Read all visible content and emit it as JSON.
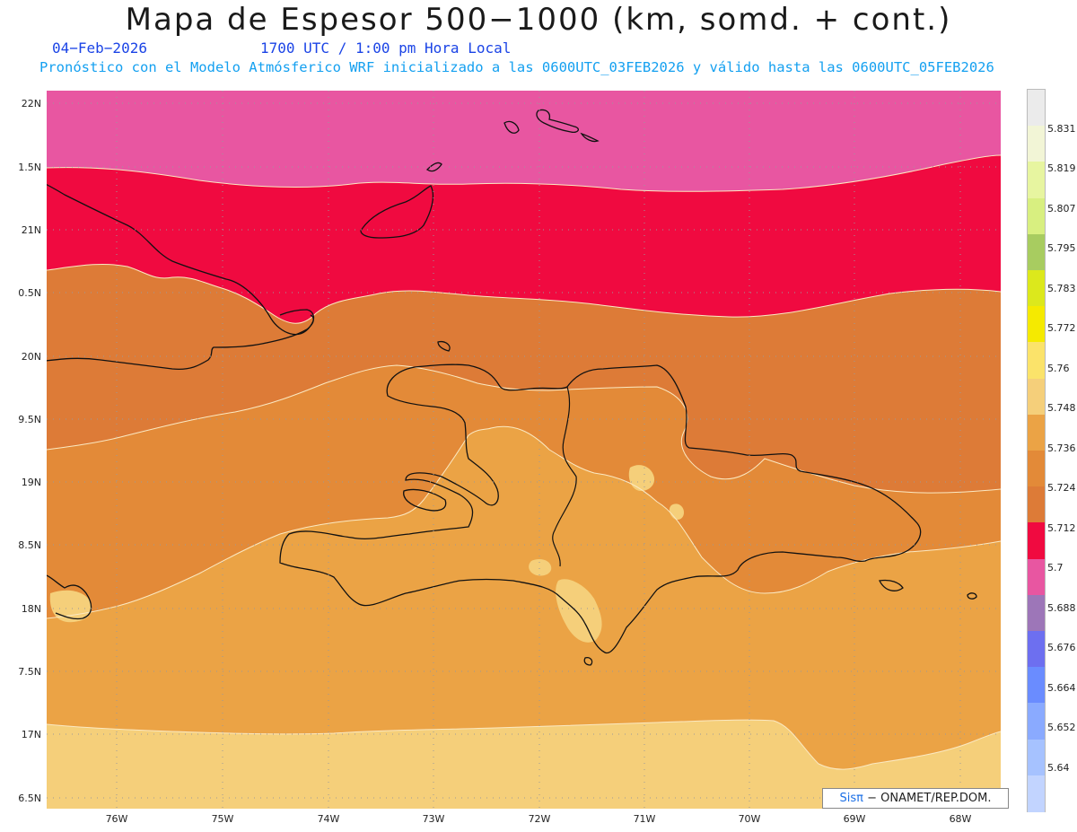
{
  "header": {
    "title": "Mapa de Espesor 500−1000 (km, somd. + cont.)",
    "date": "04−Feb−2026",
    "time": "1700 UTC / 1:00 pm Hora Local",
    "subtitle": "Pronóstico con el Modelo Atmósferico WRF inicializado a las 0600UTC_03FEB2026 y válido hasta las  0600UTC_05FEB2026"
  },
  "axes": {
    "y_labels": [
      "22N",
      "1.5N",
      "21N",
      "0.5N",
      "20N",
      "9.5N",
      "19N",
      "8.5N",
      "18N",
      "7.5N",
      "17N",
      "6.5N"
    ],
    "x_labels": [
      "76W",
      "75W",
      "74W",
      "73W",
      "72W",
      "71W",
      "70W",
      "69W",
      "68W"
    ]
  },
  "colorbar": {
    "labels": [
      "5.831",
      "5.819",
      "5.807",
      "5.795",
      "5.783",
      "5.772",
      "5.76",
      "5.748",
      "5.736",
      "5.724",
      "5.712",
      "5.7",
      "5.688",
      "5.676",
      "5.664",
      "5.652",
      "5.64"
    ],
    "colors": [
      "#ebebeb",
      "#f2f5d6",
      "#e7f5a0",
      "#d8ef80",
      "#a8cc60",
      "#dce81c",
      "#f5ea00",
      "#fbe36a",
      "#f5cf7a",
      "#eba345",
      "#e38a38",
      "#dd7b37",
      "#f00a40",
      "#e856a1",
      "#9d76b8",
      "#6d6ff0",
      "#6a8cff",
      "#8aaaff",
      "#a6c2ff",
      "#c2d4ff"
    ]
  },
  "map": {
    "fill_colors": {
      "pink": "#e856a1",
      "red": "#f00a40",
      "dark_orange": "#dd7b37",
      "mid_orange": "#e38a38",
      "orange": "#eba345",
      "light": "#f5cf7a"
    }
  },
  "credit": {
    "brand": "Sisπ",
    "text": " − ONAMET/REP.DOM."
  }
}
